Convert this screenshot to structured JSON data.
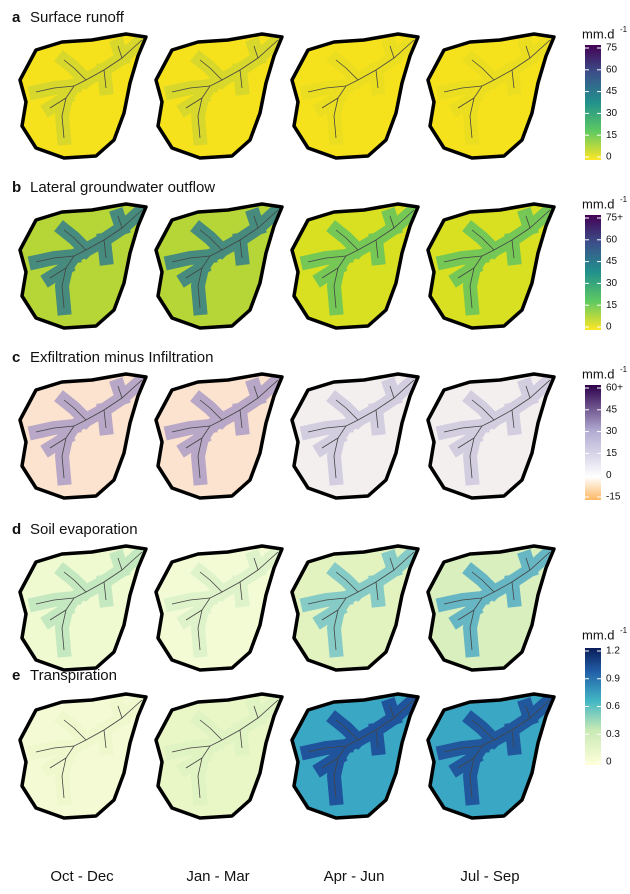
{
  "panels": [
    {
      "letter": "a",
      "title": "Surface runoff"
    },
    {
      "letter": "b",
      "title": "Lateral groundwater outflow"
    },
    {
      "letter": "c",
      "title": "Exfiltration minus Infiltration"
    },
    {
      "letter": "d",
      "title": "Soil evaporation"
    },
    {
      "letter": "e",
      "title": "Transpiration"
    }
  ],
  "colorbars": [
    {
      "unit": "mm.d",
      "unit_sup": "-1",
      "ticks": [
        "75",
        "60",
        "45",
        "30",
        "15",
        "0"
      ]
    },
    {
      "unit": "mm.d",
      "unit_sup": "-1",
      "ticks": [
        "75+",
        "60",
        "45",
        "30",
        "15",
        "0"
      ]
    },
    {
      "unit": "mm.d",
      "unit_sup": "-1",
      "ticks": [
        "60+",
        "45",
        "30",
        "15",
        "0",
        "-15"
      ]
    },
    {
      "unit": "mm.d",
      "unit_sup": "-1",
      "ticks": [
        "1.2",
        "0.9",
        "0.6",
        "0.3",
        "0"
      ]
    }
  ],
  "columns": [
    "Oct - Dec",
    "Jan - Mar",
    "Apr - Jun",
    "Jul - Sep"
  ]
}
